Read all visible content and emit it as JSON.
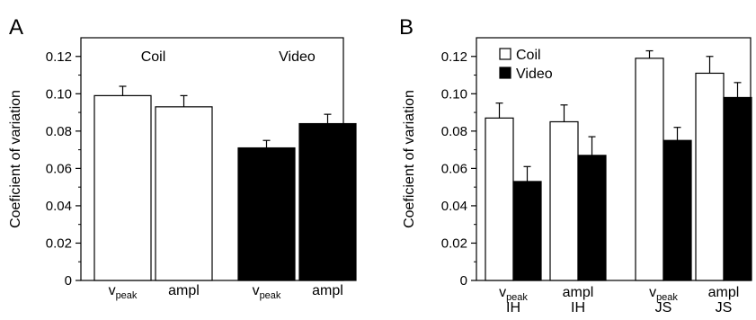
{
  "chart_data": [
    {
      "panel_label": "A",
      "type": "bar",
      "ylabel": "Coeficient of variation",
      "ylim": [
        0,
        0.13
      ],
      "yticks": [
        "0",
        "0.02",
        "0.04",
        "0.06",
        "0.08",
        "0.10",
        "0.12"
      ],
      "ytick_values": [
        0,
        0.02,
        0.04,
        0.06,
        0.08,
        0.1,
        0.12
      ],
      "group_labels": [
        "Coil",
        "Video"
      ],
      "bars": [
        {
          "group": "Coil",
          "tick_main": "v",
          "tick_sub": "peak",
          "value": 0.099,
          "error": 0.005,
          "color": "#ffffff"
        },
        {
          "group": "Coil",
          "tick_main": "ampl",
          "tick_sub": "",
          "value": 0.093,
          "error": 0.006,
          "color": "#ffffff"
        },
        {
          "group": "Video",
          "tick_main": "v",
          "tick_sub": "peak",
          "value": 0.071,
          "error": 0.004,
          "color": "#000000"
        },
        {
          "group": "Video",
          "tick_main": "ampl",
          "tick_sub": "",
          "value": 0.084,
          "error": 0.005,
          "color": "#000000"
        }
      ]
    },
    {
      "panel_label": "B",
      "type": "bar",
      "ylabel": "Coeficient of variation",
      "ylim": [
        0,
        0.13
      ],
      "yticks": [
        "0",
        "0.02",
        "0.04",
        "0.06",
        "0.08",
        "0.10",
        "0.12"
      ],
      "ytick_values": [
        0,
        0.02,
        0.04,
        0.06,
        0.08,
        0.1,
        0.12
      ],
      "legend": [
        {
          "name": "Coil",
          "color": "#ffffff"
        },
        {
          "name": "Video",
          "color": "#000000"
        }
      ],
      "legend_position": "top-left",
      "categories": [
        {
          "tick_main": "v",
          "tick_sub": "peak",
          "subject": "IH"
        },
        {
          "tick_main": "ampl",
          "tick_sub": "",
          "subject": "IH"
        },
        {
          "tick_main": "v",
          "tick_sub": "peak",
          "subject": "JS"
        },
        {
          "tick_main": "ampl",
          "tick_sub": "",
          "subject": "JS"
        }
      ],
      "series": [
        {
          "name": "Coil",
          "color": "#ffffff",
          "values": [
            0.087,
            0.085,
            0.119,
            0.111
          ],
          "errors": [
            0.008,
            0.009,
            0.004,
            0.009
          ]
        },
        {
          "name": "Video",
          "color": "#000000",
          "values": [
            0.053,
            0.067,
            0.075,
            0.098
          ],
          "errors": [
            0.008,
            0.01,
            0.007,
            0.008
          ]
        }
      ]
    }
  ]
}
